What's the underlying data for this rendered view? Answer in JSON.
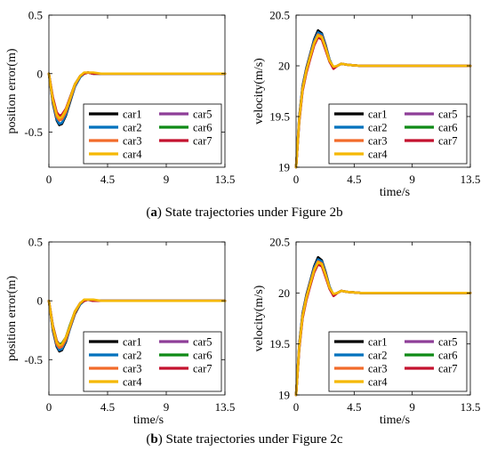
{
  "legend_names": [
    "car1",
    "car2",
    "car3",
    "car4",
    "car5",
    "car6",
    "car7"
  ],
  "colors": [
    "#000000",
    "#0072BD",
    "#F26B2A",
    "#F5B800",
    "#8E3E98",
    "#0F8A16",
    "#C4122F"
  ],
  "captions": [
    {
      "letter": "a",
      "rest": ") State trajectories under Figure 2b"
    },
    {
      "letter": "b",
      "rest": ") State trajectories under Figure 2c"
    }
  ],
  "chart_data": [
    {
      "type": "line",
      "panel": "a-left",
      "xlabel": "",
      "ylabel": "position error(m)",
      "xlim": [
        0,
        13.5
      ],
      "ylim": [
        -0.8,
        0.5
      ],
      "xticks": [
        "0",
        "4.5",
        "9",
        "13.5"
      ],
      "xtick_values": [
        0,
        4.5,
        9,
        13.5
      ],
      "yticks": [
        "0.5",
        "0",
        "-0.5"
      ],
      "ytick_values": [
        0.5,
        0,
        -0.5
      ],
      "legend": "bottom-right",
      "x": [
        0,
        0.3,
        0.6,
        0.8,
        1.0,
        1.3,
        1.6,
        2.0,
        2.4,
        2.7,
        3.0,
        3.4,
        4.0,
        5.0,
        13.5
      ],
      "series": [
        {
          "name": "car1",
          "values": [
            0,
            -0.25,
            -0.4,
            -0.44,
            -0.43,
            -0.36,
            -0.25,
            -0.11,
            -0.03,
            0.0,
            0.01,
            0.0,
            0.0,
            0.0,
            0.0
          ]
        },
        {
          "name": "car2",
          "values": [
            0,
            -0.24,
            -0.39,
            -0.43,
            -0.42,
            -0.35,
            -0.24,
            -0.11,
            -0.03,
            0.0,
            0.01,
            0.0,
            0.0,
            0.0,
            0.0
          ]
        },
        {
          "name": "car3",
          "values": [
            0,
            -0.23,
            -0.37,
            -0.4,
            -0.39,
            -0.33,
            -0.23,
            -0.1,
            -0.02,
            0.0,
            0.01,
            0.0,
            0.0,
            0.0,
            0.0
          ]
        },
        {
          "name": "car4",
          "values": [
            0,
            -0.22,
            -0.35,
            -0.38,
            -0.37,
            -0.31,
            -0.22,
            -0.09,
            -0.02,
            0.01,
            0.01,
            0.01,
            0.0,
            0.0,
            0.0
          ]
        },
        {
          "name": "car5",
          "values": [
            0,
            -0.22,
            -0.35,
            -0.39,
            -0.38,
            -0.32,
            -0.22,
            -0.1,
            -0.02,
            0.0,
            0.01,
            0.0,
            0.0,
            0.0,
            0.0
          ]
        },
        {
          "name": "car6",
          "values": [
            0,
            -0.21,
            -0.34,
            -0.37,
            -0.36,
            -0.31,
            -0.21,
            -0.09,
            -0.02,
            0.0,
            0.01,
            0.0,
            0.0,
            0.0,
            0.0
          ]
        },
        {
          "name": "car7",
          "values": [
            0,
            -0.2,
            -0.33,
            -0.36,
            -0.35,
            -0.3,
            -0.21,
            -0.09,
            -0.02,
            0.0,
            0.01,
            0.0,
            0.0,
            0.0,
            0.0
          ]
        }
      ]
    },
    {
      "type": "line",
      "panel": "a-right",
      "xlabel": "time/s",
      "ylabel": "velocity(m/s)",
      "xlim": [
        0,
        13.5
      ],
      "ylim": [
        19,
        20.5
      ],
      "xticks": [
        "0",
        "4.5",
        "9",
        "13.5"
      ],
      "xtick_values": [
        0,
        4.5,
        9,
        13.5
      ],
      "yticks": [
        "20.5",
        "20",
        "19.5",
        "19"
      ],
      "ytick_values": [
        20.5,
        20,
        19.5,
        19
      ],
      "legend": "bottom-right",
      "x": [
        0,
        0.25,
        0.5,
        0.8,
        1.1,
        1.4,
        1.7,
        2.0,
        2.3,
        2.6,
        2.9,
        3.2,
        3.5,
        4.0,
        5.0,
        13.5
      ],
      "series": [
        {
          "name": "car1",
          "values": [
            19.0,
            19.5,
            19.8,
            19.98,
            20.12,
            20.26,
            20.35,
            20.32,
            20.2,
            20.06,
            19.98,
            20.0,
            20.02,
            20.01,
            20.0,
            20.0
          ]
        },
        {
          "name": "car2",
          "values": [
            19.0,
            19.49,
            19.79,
            19.97,
            20.11,
            20.25,
            20.33,
            20.31,
            20.19,
            20.06,
            19.98,
            20.0,
            20.02,
            20.01,
            20.0,
            20.0
          ]
        },
        {
          "name": "car3",
          "values": [
            19.0,
            19.48,
            19.78,
            19.96,
            20.1,
            20.23,
            20.31,
            20.29,
            20.18,
            20.05,
            19.98,
            20.0,
            20.02,
            20.01,
            20.0,
            20.0
          ]
        },
        {
          "name": "car4",
          "values": [
            19.0,
            19.47,
            19.77,
            19.95,
            20.09,
            20.22,
            20.3,
            20.28,
            20.17,
            20.05,
            19.99,
            20.0,
            20.02,
            20.01,
            20.0,
            20.0
          ]
        },
        {
          "name": "car5",
          "values": [
            19.0,
            19.47,
            19.77,
            19.95,
            20.09,
            20.22,
            20.3,
            20.28,
            20.17,
            20.05,
            19.98,
            20.0,
            20.02,
            20.01,
            20.0,
            20.0
          ]
        },
        {
          "name": "car6",
          "values": [
            19.0,
            19.46,
            19.76,
            19.94,
            20.08,
            20.21,
            20.29,
            20.27,
            20.16,
            20.04,
            19.98,
            20.0,
            20.02,
            20.01,
            20.0,
            20.0
          ]
        },
        {
          "name": "car7",
          "values": [
            19.0,
            19.45,
            19.75,
            19.93,
            20.07,
            20.2,
            20.28,
            20.26,
            20.15,
            20.04,
            19.97,
            20.0,
            20.02,
            20.01,
            20.0,
            20.0
          ]
        }
      ]
    },
    {
      "type": "line",
      "panel": "b-left",
      "xlabel": "time/s",
      "ylabel": "position error(m)",
      "xlim": [
        0,
        13.5
      ],
      "ylim": [
        -0.8,
        0.5
      ],
      "xticks": [
        "0",
        "4.5",
        "9",
        "13.5"
      ],
      "xtick_values": [
        0,
        4.5,
        9,
        13.5
      ],
      "yticks": [
        "0.5",
        "0",
        "-0.5"
      ],
      "ytick_values": [
        0.5,
        0,
        -0.5
      ],
      "legend": "bottom-right",
      "x": [
        0,
        0.3,
        0.6,
        0.8,
        1.0,
        1.3,
        1.6,
        2.0,
        2.4,
        2.7,
        3.0,
        3.4,
        4.0,
        5.0,
        13.5
      ],
      "series": [
        {
          "name": "car1",
          "values": [
            0,
            -0.25,
            -0.39,
            -0.43,
            -0.42,
            -0.35,
            -0.24,
            -0.11,
            -0.03,
            0.0,
            0.01,
            0.0,
            0.0,
            0.0,
            0.0
          ]
        },
        {
          "name": "car2",
          "values": [
            0,
            -0.24,
            -0.38,
            -0.42,
            -0.41,
            -0.34,
            -0.24,
            -0.1,
            -0.03,
            0.0,
            0.01,
            0.0,
            0.0,
            0.0,
            0.0
          ]
        },
        {
          "name": "car3",
          "values": [
            0,
            -0.23,
            -0.37,
            -0.4,
            -0.39,
            -0.33,
            -0.23,
            -0.1,
            -0.02,
            0.0,
            0.01,
            0.0,
            0.0,
            0.0,
            0.0
          ]
        },
        {
          "name": "car4",
          "values": [
            0,
            -0.22,
            -0.35,
            -0.38,
            -0.37,
            -0.31,
            -0.22,
            -0.09,
            -0.02,
            0.01,
            0.01,
            0.01,
            0.0,
            0.0,
            0.0
          ]
        },
        {
          "name": "car5",
          "values": [
            0,
            -0.22,
            -0.35,
            -0.39,
            -0.38,
            -0.32,
            -0.22,
            -0.1,
            -0.02,
            0.0,
            0.01,
            0.0,
            0.0,
            0.0,
            0.0
          ]
        },
        {
          "name": "car6",
          "values": [
            0,
            -0.21,
            -0.34,
            -0.37,
            -0.36,
            -0.31,
            -0.21,
            -0.09,
            -0.02,
            0.0,
            0.01,
            0.0,
            0.0,
            0.0,
            0.0
          ]
        },
        {
          "name": "car7",
          "values": [
            0,
            -0.21,
            -0.34,
            -0.38,
            -0.37,
            -0.31,
            -0.22,
            -0.09,
            -0.02,
            0.0,
            0.01,
            0.0,
            0.0,
            0.0,
            0.0
          ]
        }
      ]
    },
    {
      "type": "line",
      "panel": "b-right",
      "xlabel": "time/s",
      "ylabel": "velocity(m/s)",
      "xlim": [
        0,
        13.5
      ],
      "ylim": [
        19,
        20.5
      ],
      "xticks": [
        "0",
        "4.5",
        "9",
        "13.5"
      ],
      "xtick_values": [
        0,
        4.5,
        9,
        13.5
      ],
      "yticks": [
        "20.5",
        "20",
        "19.5",
        "19"
      ],
      "ytick_values": [
        20.5,
        20,
        19.5,
        19
      ],
      "legend": "bottom-right",
      "x": [
        0,
        0.25,
        0.5,
        0.8,
        1.1,
        1.4,
        1.7,
        2.0,
        2.3,
        2.6,
        2.9,
        3.2,
        3.5,
        4.0,
        5.0,
        13.5
      ],
      "series": [
        {
          "name": "car1",
          "values": [
            19.0,
            19.5,
            19.8,
            19.98,
            20.12,
            20.26,
            20.35,
            20.32,
            20.2,
            20.06,
            19.98,
            20.0,
            20.02,
            20.01,
            20.0,
            20.0
          ]
        },
        {
          "name": "car2",
          "values": [
            19.0,
            19.49,
            19.79,
            19.97,
            20.11,
            20.25,
            20.33,
            20.31,
            20.19,
            20.06,
            19.98,
            20.0,
            20.02,
            20.01,
            20.0,
            20.0
          ]
        },
        {
          "name": "car3",
          "values": [
            19.0,
            19.48,
            19.78,
            19.96,
            20.1,
            20.23,
            20.31,
            20.29,
            20.18,
            20.05,
            19.98,
            20.0,
            20.02,
            20.01,
            20.0,
            20.0
          ]
        },
        {
          "name": "car4",
          "values": [
            19.0,
            19.47,
            19.77,
            19.95,
            20.09,
            20.22,
            20.3,
            20.28,
            20.17,
            20.05,
            19.99,
            20.0,
            20.02,
            20.01,
            20.0,
            20.0
          ]
        },
        {
          "name": "car5",
          "values": [
            19.0,
            19.47,
            19.77,
            19.95,
            20.09,
            20.22,
            20.3,
            20.28,
            20.17,
            20.05,
            19.98,
            20.0,
            20.02,
            20.01,
            20.0,
            20.0
          ]
        },
        {
          "name": "car6",
          "values": [
            19.0,
            19.46,
            19.76,
            19.94,
            20.08,
            20.21,
            20.29,
            20.27,
            20.16,
            20.04,
            19.98,
            20.0,
            20.02,
            20.01,
            20.0,
            20.0
          ]
        },
        {
          "name": "car7",
          "values": [
            19.0,
            19.45,
            19.75,
            19.93,
            20.07,
            20.2,
            20.28,
            20.26,
            20.15,
            20.04,
            19.97,
            20.0,
            20.02,
            20.01,
            20.0,
            20.0
          ]
        }
      ]
    }
  ]
}
